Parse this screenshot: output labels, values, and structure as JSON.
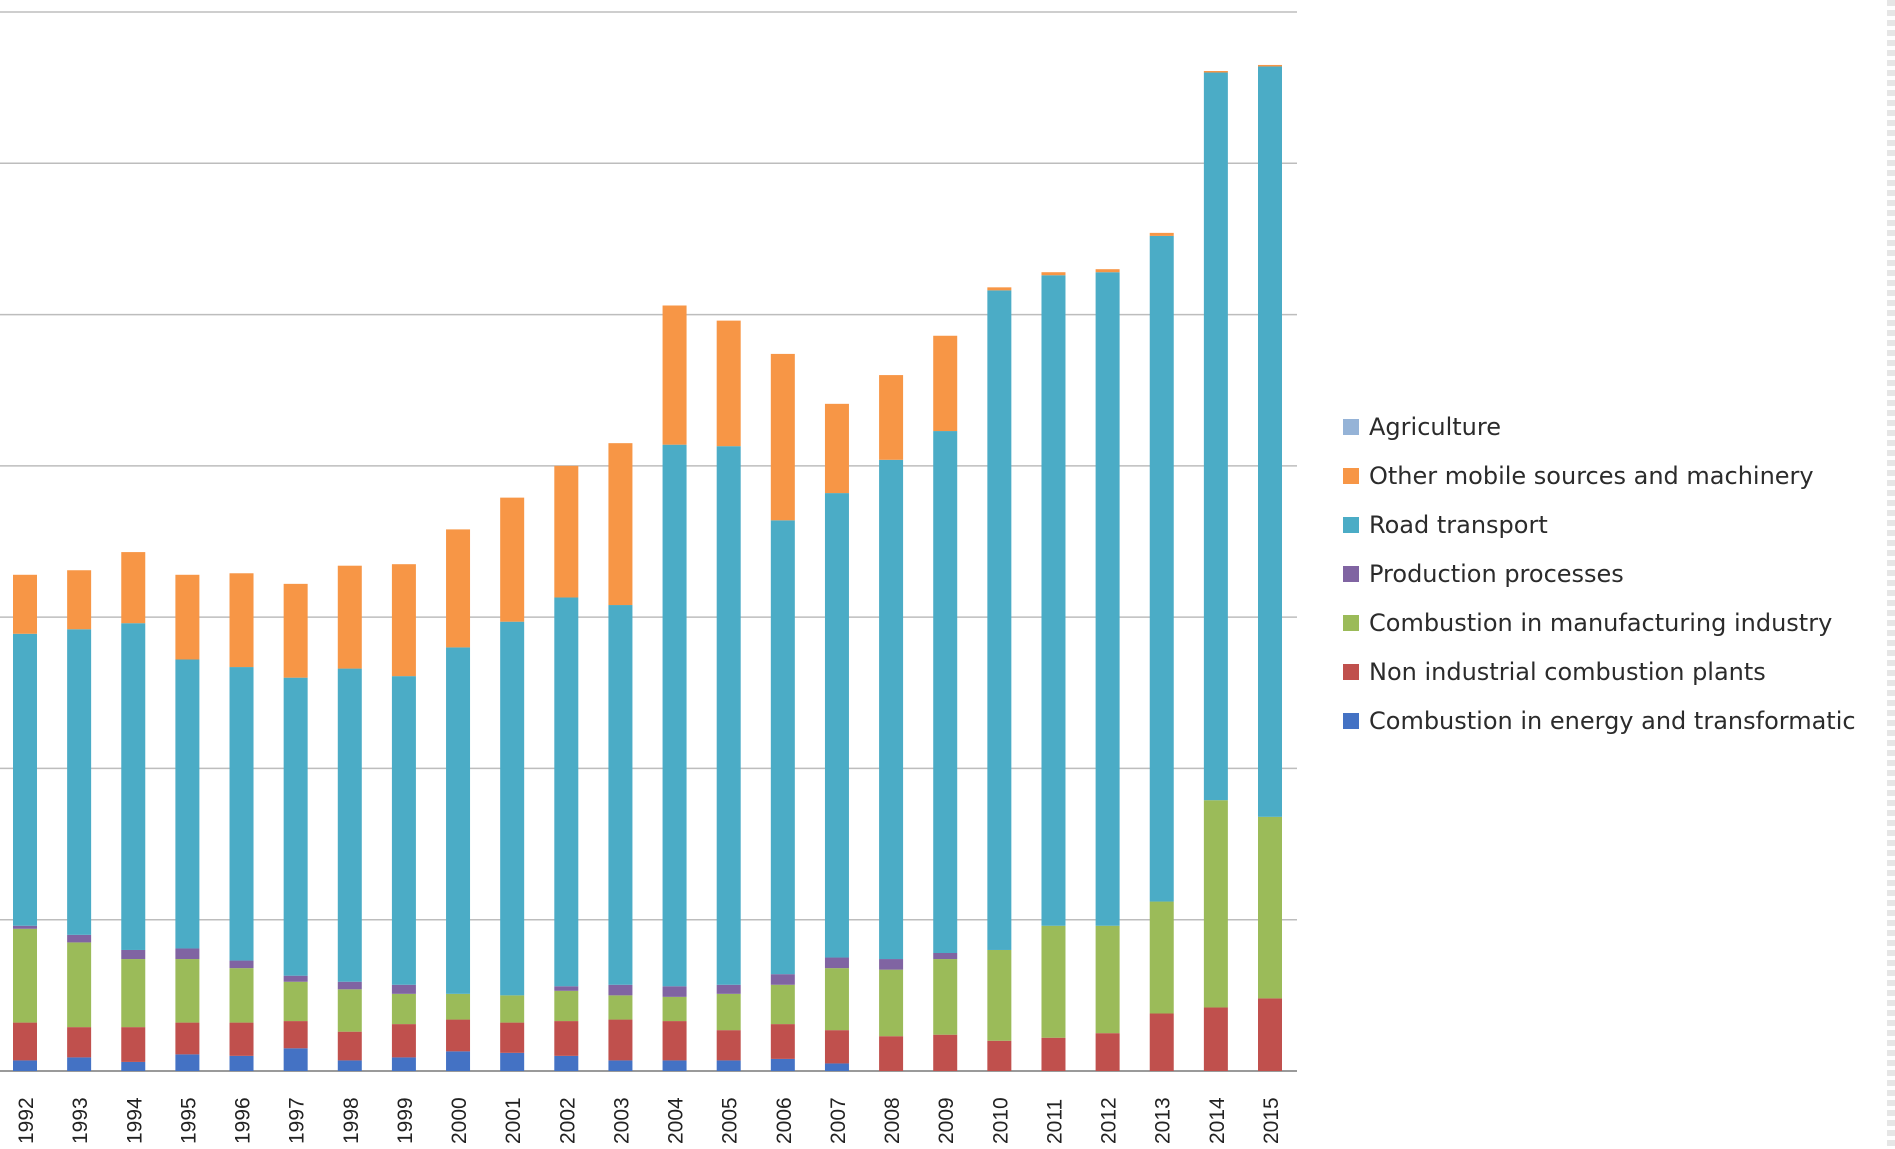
{
  "chart_data": {
    "type": "bar",
    "stacked": true,
    "title": "",
    "xlabel": "",
    "ylabel": "",
    "ylim": [
      0,
      7
    ],
    "grid": true,
    "legend_position": "right",
    "categories": [
      "1992",
      "1993",
      "1994",
      "1995",
      "1996",
      "1997",
      "1998",
      "1999",
      "2000",
      "2001",
      "2002",
      "2003",
      "2004",
      "2005",
      "2006",
      "2007",
      "2008",
      "2009",
      "2010",
      "2011",
      "2012",
      "2013",
      "2014",
      "2015"
    ],
    "series": [
      {
        "name": "Combustion in energy and transformation",
        "color": "#4472c4",
        "values": [
          0.07,
          0.09,
          0.06,
          0.11,
          0.1,
          0.15,
          0.07,
          0.09,
          0.13,
          0.12,
          0.1,
          0.07,
          0.07,
          0.07,
          0.08,
          0.05,
          0.0,
          0.0,
          0.0,
          0.0,
          0.0,
          0.0,
          0.0,
          0.0
        ]
      },
      {
        "name": "Non industrial combustion plants",
        "color": "#c0504d",
        "values": [
          0.25,
          0.2,
          0.23,
          0.21,
          0.22,
          0.18,
          0.19,
          0.22,
          0.21,
          0.2,
          0.23,
          0.27,
          0.26,
          0.2,
          0.23,
          0.22,
          0.23,
          0.24,
          0.2,
          0.22,
          0.25,
          0.38,
          0.42,
          0.48
        ]
      },
      {
        "name": "Combustion in manufacturing industry",
        "color": "#9bbb59",
        "values": [
          0.62,
          0.56,
          0.45,
          0.42,
          0.36,
          0.26,
          0.28,
          0.2,
          0.17,
          0.18,
          0.2,
          0.16,
          0.16,
          0.24,
          0.26,
          0.41,
          0.44,
          0.5,
          0.6,
          0.74,
          0.71,
          0.74,
          1.37,
          1.2
        ]
      },
      {
        "name": "Production processes",
        "color": "#8064a2",
        "values": [
          0.02,
          0.05,
          0.06,
          0.07,
          0.05,
          0.04,
          0.05,
          0.06,
          0.0,
          0.0,
          0.03,
          0.07,
          0.07,
          0.06,
          0.07,
          0.07,
          0.07,
          0.04,
          0.0,
          0.0,
          0.0,
          0.0,
          0.0,
          0.0
        ]
      },
      {
        "name": "Road transport",
        "color": "#4bacc6",
        "values": [
          1.93,
          2.02,
          2.16,
          1.91,
          1.94,
          1.97,
          2.07,
          2.04,
          2.29,
          2.47,
          2.57,
          2.51,
          3.58,
          3.56,
          3.0,
          3.07,
          3.3,
          3.45,
          4.36,
          4.3,
          4.32,
          4.4,
          4.81,
          4.96
        ]
      },
      {
        "name": "Other mobile sources and machinery",
        "color": "#f79646",
        "values": [
          0.39,
          0.39,
          0.47,
          0.56,
          0.62,
          0.62,
          0.68,
          0.74,
          0.78,
          0.82,
          0.87,
          1.07,
          0.92,
          0.83,
          1.1,
          0.59,
          0.56,
          0.63,
          0.02,
          0.02,
          0.02,
          0.02,
          0.01,
          0.01
        ]
      },
      {
        "name": "Agriculture",
        "color": "#95b3d7",
        "values": [
          0,
          0,
          0,
          0,
          0,
          0,
          0,
          0,
          0,
          0,
          0,
          0,
          0,
          0,
          0,
          0,
          0,
          0,
          0,
          0,
          0,
          0,
          0,
          0
        ]
      }
    ],
    "legend_order": [
      6,
      5,
      4,
      3,
      2,
      1,
      0
    ],
    "legend_labels": [
      "Agriculture",
      "Other mobile sources and machinery",
      "Road transport",
      "Production processes",
      "Combustion in manufacturing industry",
      "Non industrial combustion plants",
      "Combustion in energy and transformatic"
    ]
  }
}
